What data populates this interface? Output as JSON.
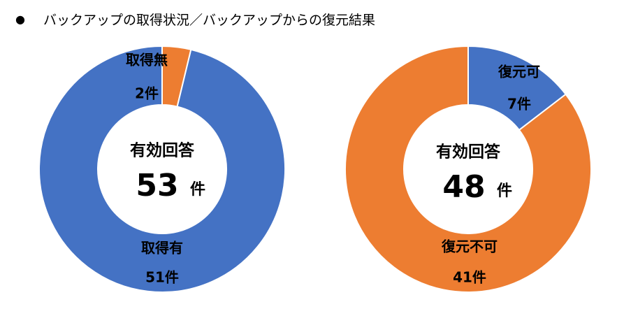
{
  "header": {
    "bullet": "●",
    "title": "バックアップの取得状況／バックアップからの復元結果"
  },
  "chart_data": [
    {
      "type": "pie",
      "categories": [
        "取得無",
        "取得有"
      ],
      "values": [
        2,
        51
      ],
      "value_labels": [
        "2件",
        "51件"
      ],
      "colors": [
        "#ED7D31",
        "#4472C4"
      ],
      "center_title": "有効回答",
      "center_value": "53",
      "center_unit": "件"
    },
    {
      "type": "pie",
      "categories": [
        "復元可",
        "復元不可"
      ],
      "values": [
        7,
        41
      ],
      "value_labels": [
        "7件",
        "41件"
      ],
      "colors": [
        "#4472C4",
        "#ED7D31"
      ],
      "center_title": "有効回答",
      "center_value": "48",
      "center_unit": "件"
    }
  ]
}
